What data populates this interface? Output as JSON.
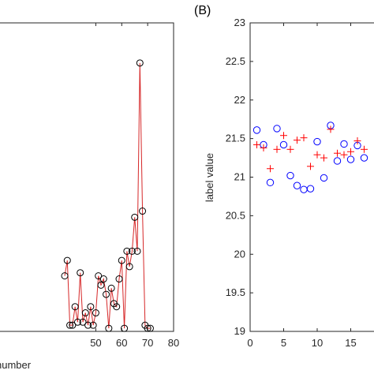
{
  "chart_data": [
    {
      "type": "line",
      "panel_label": "",
      "xlabel": "number",
      "ylabel": "",
      "xlim": [
        10,
        80
      ],
      "ylim": [
        0,
        1
      ],
      "xticks": [
        50,
        60,
        70,
        80
      ],
      "line_color": "#d62728",
      "marker_color": "#000000",
      "marker": "circle",
      "x": [
        38,
        39,
        40,
        41,
        42,
        43,
        44,
        45,
        46,
        47,
        48,
        49,
        50,
        51,
        52,
        53,
        54,
        55,
        56,
        57,
        58,
        59,
        60,
        61,
        62,
        63,
        64,
        65,
        66,
        67,
        68,
        69,
        70,
        71
      ],
      "y": [
        0.18,
        0.23,
        0.02,
        0.02,
        0.08,
        0.03,
        0.19,
        0.03,
        0.06,
        0.02,
        0.08,
        0.02,
        0.06,
        0.18,
        0.15,
        0.17,
        0.12,
        0.01,
        0.14,
        0.09,
        0.08,
        0.17,
        0.23,
        0.01,
        0.26,
        0.21,
        0.26,
        0.37,
        0.26,
        0.87,
        0.39,
        0.02,
        0.01,
        0.01
      ]
    },
    {
      "type": "scatter",
      "panel_label": "(B)",
      "xlabel": "",
      "ylabel": "label value",
      "xlim": [
        0,
        20
      ],
      "ylim": [
        19,
        23
      ],
      "xticks": [
        0,
        5,
        10,
        15
      ],
      "yticks": [
        19,
        19.5,
        20,
        20.5,
        21,
        21.5,
        22,
        22.5,
        23
      ],
      "series": [
        {
          "marker": "circle",
          "color": "#0000ff",
          "x": [
            1,
            2,
            3,
            4,
            5,
            6,
            7,
            8,
            9,
            10,
            11,
            12,
            13,
            14,
            15,
            16,
            17
          ],
          "y": [
            21.61,
            21.42,
            20.93,
            21.63,
            21.42,
            21.02,
            20.89,
            20.84,
            20.85,
            21.46,
            20.99,
            21.67,
            21.21,
            21.43,
            21.23,
            21.41,
            21.25
          ]
        },
        {
          "marker": "plus",
          "color": "#ff0000",
          "x": [
            1,
            2,
            3,
            4,
            5,
            6,
            7,
            8,
            9,
            10,
            11,
            12,
            13,
            14,
            15,
            16,
            17
          ],
          "y": [
            21.42,
            21.38,
            21.11,
            21.36,
            21.54,
            21.36,
            21.48,
            21.51,
            21.14,
            21.29,
            21.25,
            21.62,
            21.31,
            21.29,
            21.33,
            21.47,
            21.36
          ]
        }
      ]
    }
  ]
}
